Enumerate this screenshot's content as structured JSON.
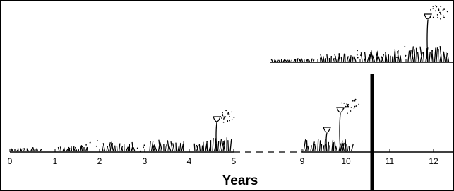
{
  "axis": {
    "title": "Years",
    "ticks": [
      "0",
      "1",
      "2",
      "3",
      "4",
      "5",
      "9",
      "10",
      "11",
      "12"
    ]
  }
}
